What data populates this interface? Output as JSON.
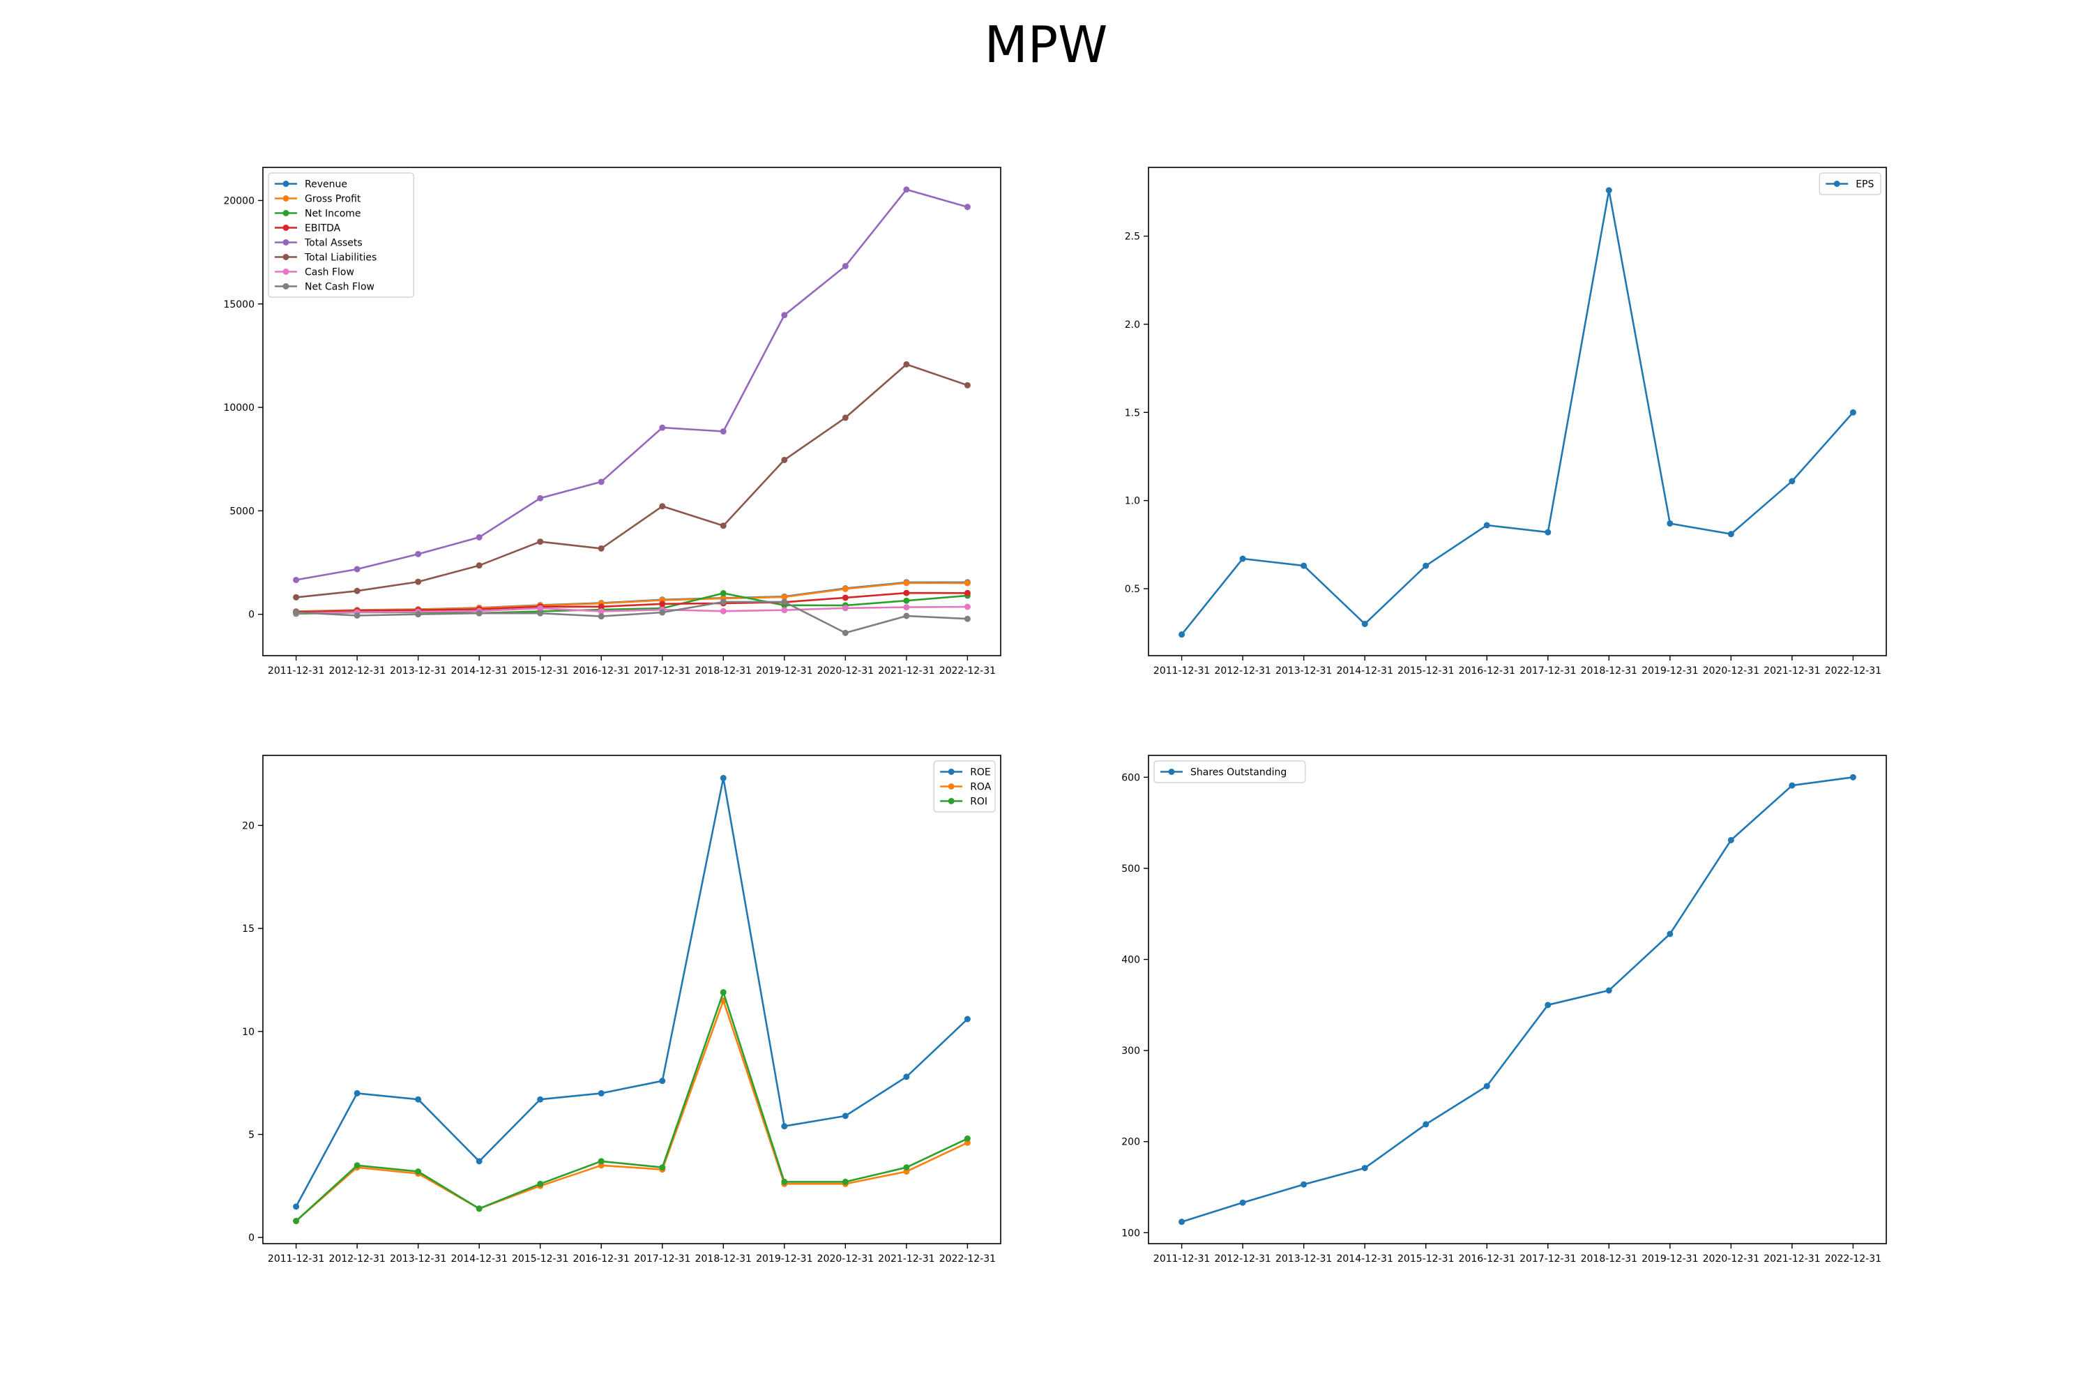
{
  "title": "MPW",
  "colors": [
    "#1f77b4",
    "#ff7f0e",
    "#2ca02c",
    "#d62728",
    "#9467bd",
    "#8c564b",
    "#e377c2",
    "#7f7f7f"
  ],
  "chart_data": [
    {
      "type": "line",
      "title": "",
      "xlabel": "",
      "ylabel": "",
      "legend": "top-left",
      "grid": false,
      "x": [
        "2011-12-31",
        "2012-12-31",
        "2013-12-31",
        "2014-12-31",
        "2015-12-31",
        "2016-12-31",
        "2017-12-31",
        "2018-12-31",
        "2019-12-31",
        "2020-12-31",
        "2021-12-31",
        "2022-12-31"
      ],
      "ylim": [
        -2000,
        21600
      ],
      "yticks": [
        0,
        5000,
        10000,
        15000,
        20000
      ],
      "series": [
        {
          "name": "Revenue",
          "values": [
            137,
            206,
            242,
            312,
            441,
            541,
            705,
            785,
            854,
            1249,
            1545,
            1543
          ]
        },
        {
          "name": "Gross Profit",
          "values": [
            130,
            198,
            233,
            301,
            428,
            526,
            685,
            768,
            837,
            1226,
            1515,
            1510
          ]
        },
        {
          "name": "Net Income",
          "values": [
            26,
            90,
            97,
            52,
            140,
            225,
            289,
            1017,
            434,
            431,
            656,
            903
          ]
        },
        {
          "name": "EBITDA",
          "values": [
            110,
            171,
            203,
            245,
            370,
            368,
            500,
            531,
            585,
            800,
            1030,
            1025
          ]
        },
        {
          "name": "Total Assets",
          "values": [
            1660,
            2180,
            2910,
            3720,
            5610,
            6400,
            9020,
            8840,
            14460,
            16830,
            20530,
            19690
          ]
        },
        {
          "name": "Total Liabilities",
          "values": [
            820,
            1130,
            1570,
            2360,
            3510,
            3180,
            5220,
            4280,
            7460,
            9500,
            12080,
            11070
          ]
        },
        {
          "name": "Cash Flow",
          "values": [
            50,
            100,
            120,
            160,
            290,
            140,
            220,
            150,
            200,
            300,
            340,
            360
          ]
        },
        {
          "name": "Net Cash Flow",
          "values": [
            90,
            -60,
            0,
            50,
            50,
            -100,
            90,
            600,
            600,
            -900,
            -80,
            -220
          ]
        }
      ]
    },
    {
      "type": "line",
      "title": "",
      "xlabel": "",
      "ylabel": "",
      "legend": "top-right",
      "grid": false,
      "x": [
        "2011-12-31",
        "2012-12-31",
        "2013-12-31",
        "2014-12-31",
        "2015-12-31",
        "2016-12-31",
        "2017-12-31",
        "2018-12-31",
        "2019-12-31",
        "2020-12-31",
        "2021-12-31",
        "2022-12-31"
      ],
      "ylim": [
        0.12,
        2.89
      ],
      "yticks": [
        0.5,
        1.0,
        1.5,
        2.0,
        2.5
      ],
      "ytick_labels": [
        "0.5",
        "1.0",
        "1.5",
        "2.0",
        "2.5"
      ],
      "series": [
        {
          "name": "EPS",
          "values": [
            0.24,
            0.67,
            0.63,
            0.3,
            0.63,
            0.86,
            0.82,
            2.76,
            0.87,
            0.81,
            1.11,
            1.5
          ]
        }
      ]
    },
    {
      "type": "line",
      "title": "",
      "xlabel": "",
      "ylabel": "",
      "legend": "top-right",
      "grid": false,
      "x": [
        "2011-12-31",
        "2012-12-31",
        "2013-12-31",
        "2014-12-31",
        "2015-12-31",
        "2016-12-31",
        "2017-12-31",
        "2018-12-31",
        "2019-12-31",
        "2020-12-31",
        "2021-12-31",
        "2022-12-31"
      ],
      "ylim": [
        -0.3,
        23.4
      ],
      "yticks": [
        0,
        5,
        10,
        15,
        20
      ],
      "series": [
        {
          "name": "ROE",
          "values": [
            1.5,
            7.0,
            6.7,
            3.7,
            6.7,
            7.0,
            7.6,
            22.3,
            5.4,
            5.9,
            7.8,
            10.6
          ]
        },
        {
          "name": "ROA",
          "values": [
            0.8,
            3.4,
            3.1,
            1.4,
            2.5,
            3.5,
            3.3,
            11.5,
            2.6,
            2.6,
            3.2,
            4.6
          ]
        },
        {
          "name": "ROI",
          "values": [
            0.8,
            3.5,
            3.2,
            1.4,
            2.6,
            3.7,
            3.4,
            11.9,
            2.7,
            2.7,
            3.4,
            4.8
          ]
        }
      ]
    },
    {
      "type": "line",
      "title": "",
      "xlabel": "",
      "ylabel": "",
      "legend": "top-left",
      "grid": false,
      "x": [
        "2011-12-31",
        "2012-12-31",
        "2013-12-31",
        "2014-12-31",
        "2015-12-31",
        "2016-12-31",
        "2017-12-31",
        "2018-12-31",
        "2019-12-31",
        "2020-12-31",
        "2021-12-31",
        "2022-12-31"
      ],
      "ylim": [
        88,
        624
      ],
      "yticks": [
        100,
        200,
        300,
        400,
        500,
        600
      ],
      "series": [
        {
          "name": "Shares Outstanding",
          "values": [
            112,
            133,
            153,
            171,
            219,
            261,
            350,
            366,
            428,
            531,
            591,
            600
          ]
        }
      ]
    }
  ]
}
